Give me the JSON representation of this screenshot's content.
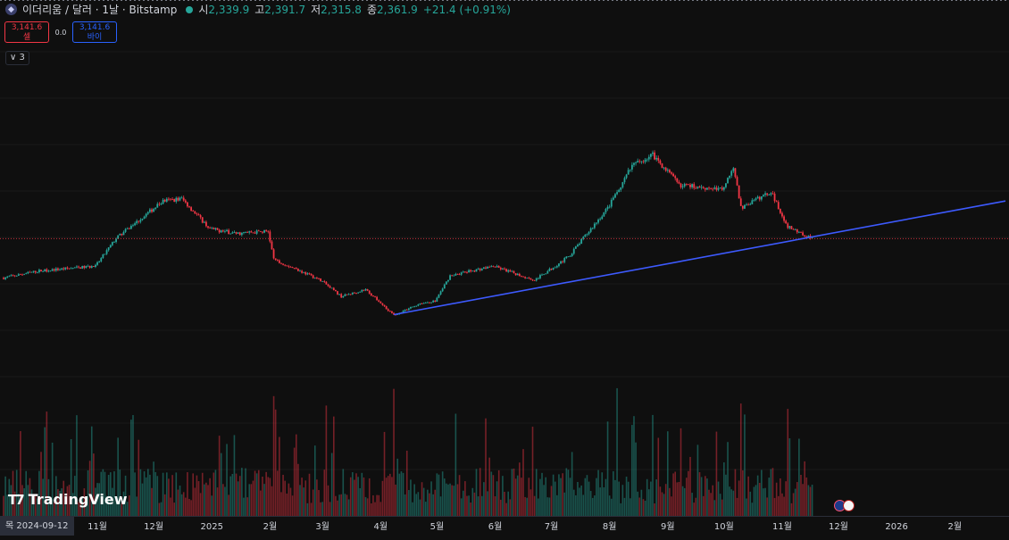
{
  "header": {
    "symbol_icon": "ethereum-icon",
    "symbol": "이더리움 / 달러 · 1날 · Bitstamp",
    "open_label": "시",
    "open": "2,339.9",
    "high_label": "고",
    "high": "2,391.7",
    "low_label": "저",
    "low": "2,315.8",
    "close_label": "종",
    "close": "2,361.9",
    "change": "+21.4 (+0.91%)"
  },
  "trade": {
    "sell_price": "3,141.6",
    "sell_label": "셀",
    "spread": "0.0",
    "buy_price": "3,141.6",
    "buy_label": "바이"
  },
  "indicators_toggle": "∨ 3",
  "watermark": "TradingView",
  "crosshair_date": "목 2024-09-12",
  "colors": {
    "up": "#26a69a",
    "down": "#f23645",
    "trendline": "#3d5afe",
    "background": "#0f0f0f"
  },
  "chart_data": {
    "type": "candlestick",
    "x_labels": [
      "11월",
      "12월",
      "2025",
      "2월",
      "3월",
      "4월",
      "5월",
      "6월",
      "7월",
      "8월",
      "9월",
      "10월",
      "11월",
      "12월",
      "2026",
      "2월"
    ],
    "x_range": [
      "2024-09-12",
      "2026-02-28"
    ],
    "price_anchors": [
      [
        "2024-09-12",
        2300
      ],
      [
        "2024-10-01",
        2450
      ],
      [
        "2024-10-31",
        2550
      ],
      [
        "2024-11-11",
        3150
      ],
      [
        "2024-12-06",
        3950
      ],
      [
        "2024-12-16",
        4000
      ],
      [
        "2024-12-31",
        3350
      ],
      [
        "2025-01-14",
        3250
      ],
      [
        "2025-01-31",
        3300
      ],
      [
        "2025-02-03",
        2700
      ],
      [
        "2025-02-28",
        2250
      ],
      [
        "2025-03-11",
        1900
      ],
      [
        "2025-03-24",
        2050
      ],
      [
        "2025-04-08",
        1500
      ],
      [
        "2025-04-22",
        1750
      ],
      [
        "2025-04-30",
        1800
      ],
      [
        "2025-05-08",
        2350
      ],
      [
        "2025-05-31",
        2550
      ],
      [
        "2025-06-22",
        2250
      ],
      [
        "2025-07-10",
        2750
      ],
      [
        "2025-07-31",
        3800
      ],
      [
        "2025-08-13",
        4700
      ],
      [
        "2025-08-24",
        4950
      ],
      [
        "2025-09-07",
        4300
      ],
      [
        "2025-09-30",
        4200
      ],
      [
        "2025-10-06",
        4700
      ],
      [
        "2025-10-10",
        3800
      ],
      [
        "2025-10-26",
        4150
      ],
      [
        "2025-11-04",
        3400
      ],
      [
        "2025-11-17",
        3140
      ]
    ],
    "trendline": {
      "from": [
        "2025-04-08",
        1510
      ],
      "to": [
        "2026-02-28",
        3950
      ]
    },
    "last_price": 3141.6,
    "volume_spikes": [
      "2025-02-03",
      "2025-03-03",
      "2025-04-08",
      "2025-07-31",
      "2025-08-05",
      "2025-08-24",
      "2025-10-10",
      "2025-10-12",
      "2025-11-04"
    ]
  }
}
